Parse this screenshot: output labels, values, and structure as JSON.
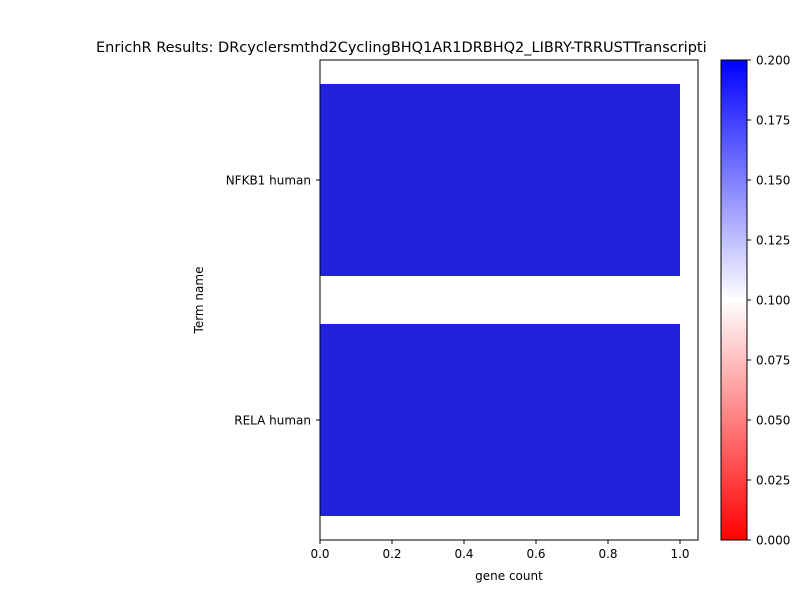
{
  "chart_data": {
    "type": "bar",
    "orientation": "horizontal",
    "title": "EnrichR Results: DRcyclersmthd2CyclingBHQ1AR1DRBHQ2_LIBRY-TRRUSTTranscripti",
    "xlabel": "gene count",
    "ylabel": "Term name",
    "categories": [
      "NFKB1 human",
      "RELA human"
    ],
    "values": [
      1.0,
      1.0
    ],
    "color_values": [
      0.19,
      0.19
    ],
    "xlim": [
      0,
      1.05
    ],
    "xticks": [
      "0.0",
      "0.2",
      "0.4",
      "0.6",
      "0.8",
      "1.0"
    ],
    "grid": false,
    "colorbar": {
      "range": [
        0.0,
        0.2
      ],
      "ticks": [
        "0.000",
        "0.025",
        "0.050",
        "0.075",
        "0.100",
        "0.125",
        "0.150",
        "0.175",
        "0.200"
      ],
      "colors": [
        "#ff0000",
        "#ffffff",
        "#0000ff"
      ]
    },
    "bar_color": "#2222dd"
  }
}
